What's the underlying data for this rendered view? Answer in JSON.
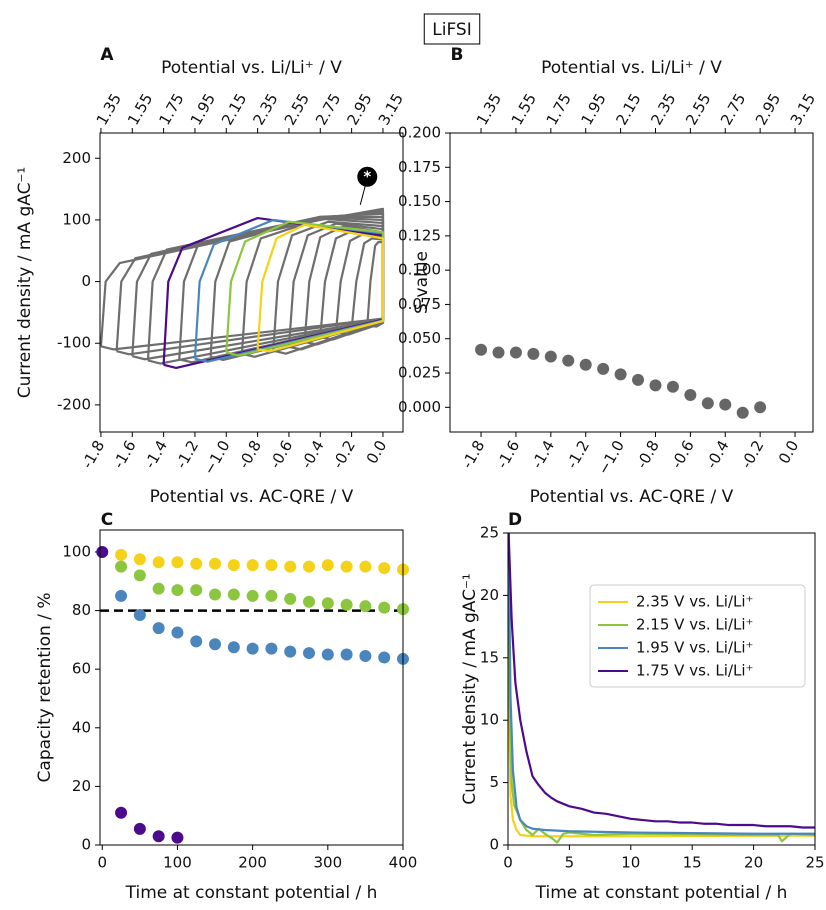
{
  "title": "LiFSI",
  "chart_data": [
    {
      "type": "line",
      "label": "A",
      "xlabel": "Potential vs. AC-QRE  / V",
      "x2label": "Potential vs. Li/Li⁺ / V",
      "ylabel": "Current density / mA gAC⁻¹",
      "xlim": [
        -1.806,
        0.128
      ],
      "x2lim": [
        1.344,
        3.278
      ],
      "ylim": [
        -244,
        241
      ],
      "xticks": [
        -1.8,
        -1.6,
        -1.4,
        -1.2,
        {
          "value": -1,
          "label": "−1.0"
        },
        -0.8,
        -0.6,
        -0.4,
        -0.2,
        {
          "value": 0,
          "label": "0.0"
        }
      ],
      "x2ticks": [
        1.35,
        1.55,
        1.75,
        1.95,
        2.15,
        2.35,
        2.55,
        2.75,
        2.95,
        3.15
      ],
      "yticks": [
        -200,
        -100,
        0,
        100,
        200
      ],
      "annotations": [
        {
          "text": "*",
          "x": -0.1,
          "y": 170
        }
      ],
      "series": [
        {
          "color": "#6e6e6e",
          "x": [
            -1.8,
            -1.77,
            -1.68,
            -0.4,
            0,
            0,
            -1.72,
            -1.8
          ],
          "values": [
            -105,
            0,
            30,
            100,
            118,
            -60,
            -110,
            -105
          ]
        },
        {
          "color": "#6e6e6e",
          "x": [
            -1.7,
            -1.67,
            -1.58,
            -0.4,
            0,
            0,
            -1.62,
            -1.7
          ],
          "values": [
            -113,
            0,
            38,
            102,
            115,
            -60,
            -118,
            -113
          ]
        },
        {
          "color": "#6e6e6e",
          "x": [
            -1.6,
            -1.57,
            -1.48,
            -0.4,
            0,
            0,
            -1.52,
            -1.6
          ],
          "values": [
            -121,
            0,
            45,
            104,
            112,
            -62,
            -126,
            -121
          ]
        },
        {
          "color": "#6e6e6e",
          "x": [
            -1.5,
            -1.47,
            -1.38,
            -0.4,
            0,
            0,
            -1.42,
            -1.5
          ],
          "values": [
            -128,
            0,
            52,
            105,
            110,
            -62,
            -133,
            -128
          ]
        },
        {
          "color": "#6e6e6e",
          "x": [
            -1.3,
            -1.27,
            -1.18,
            -0.4,
            0,
            0,
            -1.22,
            -1.3
          ],
          "values": [
            -126,
            0,
            60,
            105,
            105,
            -62,
            -131,
            -126
          ]
        },
        {
          "color": "#6e6e6e",
          "x": [
            -1.1,
            -1.07,
            -0.98,
            -0.4,
            0,
            0,
            -1.02,
            -1.1
          ],
          "values": [
            -122,
            0,
            65,
            104,
            100,
            -64,
            -127,
            -122
          ]
        },
        {
          "color": "#6e6e6e",
          "x": [
            -0.9,
            -0.87,
            -0.78,
            -0.4,
            0,
            0,
            -0.82,
            -0.9
          ],
          "values": [
            -117,
            0,
            70,
            102,
            95,
            -64,
            -122,
            -117
          ]
        },
        {
          "color": "#6e6e6e",
          "x": [
            -0.7,
            -0.67,
            -0.58,
            -0.35,
            0,
            0,
            -0.62,
            -0.7
          ],
          "values": [
            -112,
            0,
            75,
            97,
            90,
            -65,
            -117,
            -112
          ]
        },
        {
          "color": "#6e6e6e",
          "x": [
            -0.6,
            -0.57,
            -0.48,
            -0.3,
            0,
            0,
            -0.52,
            -0.6
          ],
          "values": [
            -106,
            0,
            75,
            94,
            85,
            -65,
            -110,
            -106
          ]
        },
        {
          "color": "#6e6e6e",
          "x": [
            -0.5,
            -0.47,
            -0.4,
            -0.25,
            0,
            0,
            -0.42,
            -0.5
          ],
          "values": [
            -98,
            0,
            72,
            90,
            80,
            -66,
            -102,
            -98
          ]
        },
        {
          "color": "#6e6e6e",
          "x": [
            -0.4,
            -0.37,
            -0.3,
            -0.18,
            0,
            0,
            -0.32,
            -0.4
          ],
          "values": [
            -90,
            0,
            70,
            84,
            76,
            -66,
            -94,
            -90
          ]
        },
        {
          "color": "#6e6e6e",
          "x": [
            -0.3,
            -0.27,
            -0.21,
            -0.12,
            0,
            0,
            -0.22,
            -0.3
          ],
          "values": [
            -82,
            0,
            66,
            78,
            72,
            -67,
            -86,
            -82
          ]
        },
        {
          "color": "#6e6e6e",
          "x": [
            -0.2,
            -0.17,
            -0.12,
            -0.07,
            0,
            0,
            -0.13,
            -0.2
          ],
          "values": [
            -76,
            0,
            62,
            70,
            68,
            -67,
            -78,
            -76
          ]
        },
        {
          "color": "#6e6e6e",
          "x": [
            -0.1,
            -0.08,
            -0.05,
            -0.03,
            0,
            0,
            -0.04,
            -0.1
          ],
          "values": [
            -72,
            0,
            58,
            64,
            64,
            -67,
            -73,
            -72
          ]
        },
        {
          "color": "#4b0b8b",
          "x": [
            -1.4,
            -1.37,
            -1.28,
            -0.8,
            0,
            0,
            -1.32,
            -1.4
          ],
          "values": [
            -135,
            0,
            55,
            103,
            75,
            -62,
            -140,
            -135
          ]
        },
        {
          "color": "#4a86bd",
          "x": [
            -1.2,
            -1.17,
            -1.08,
            -0.7,
            0,
            0,
            -1.12,
            -1.2
          ],
          "values": [
            -125,
            0,
            60,
            100,
            78,
            -63,
            -130,
            -125
          ]
        },
        {
          "color": "#8cc63f",
          "x": [
            -1.0,
            -0.97,
            -0.88,
            -0.6,
            0,
            0,
            -0.92,
            -1.0
          ],
          "values": [
            -115,
            0,
            65,
            97,
            80,
            -64,
            -120,
            -115
          ]
        },
        {
          "color": "#f5d21a",
          "x": [
            -0.8,
            -0.77,
            -0.68,
            -0.5,
            0,
            0,
            -0.72,
            -0.8
          ],
          "values": [
            -110,
            0,
            70,
            92,
            70,
            -64,
            -113,
            -110
          ]
        }
      ]
    },
    {
      "type": "scatter",
      "label": "B",
      "xlabel": "Potential vs. AC-QRE  / V",
      "x2label": "Potential vs. Li/Li⁺ / V",
      "ylabel": "S-value",
      "xlim": [
        -1.978,
        0.103
      ],
      "x2lim": [
        1.172,
        3.253
      ],
      "ylim": [
        -0.018,
        0.2
      ],
      "xticks": [
        -1.8,
        -1.6,
        -1.4,
        -1.2,
        {
          "value": -1,
          "label": "−1.0"
        },
        -0.8,
        -0.6,
        -0.4,
        -0.2,
        {
          "value": 0,
          "label": "0.0"
        }
      ],
      "x2ticks": [
        1.35,
        1.55,
        1.75,
        1.95,
        2.15,
        2.35,
        2.55,
        2.75,
        2.95,
        3.15
      ],
      "yticks": [
        {
          "value": 0,
          "label": "0.000"
        },
        {
          "value": 0.025,
          "label": "0.025"
        },
        {
          "value": 0.05,
          "label": "0.050"
        },
        {
          "value": 0.075,
          "label": "0.075"
        },
        {
          "value": 0.1,
          "label": "0.100"
        },
        {
          "value": 0.125,
          "label": "0.125"
        },
        {
          "value": 0.15,
          "label": "0.150"
        },
        {
          "value": 0.175,
          "label": "0.175"
        },
        {
          "value": 0.2,
          "label": "0.200"
        }
      ],
      "series": [
        {
          "color": "#666666",
          "x": [
            -1.8,
            -1.7,
            -1.6,
            -1.5,
            -1.4,
            -1.3,
            -1.2,
            -1.1,
            -1.0,
            -0.9,
            -0.8,
            -0.7,
            -0.6,
            -0.5,
            -0.4,
            -0.3,
            -0.2
          ],
          "values": [
            0.042,
            0.04,
            0.04,
            0.039,
            0.037,
            0.034,
            0.031,
            0.028,
            0.024,
            0.02,
            0.016,
            0.015,
            0.009,
            0.003,
            0.002,
            -0.004,
            0.0
          ]
        }
      ]
    },
    {
      "type": "scatter",
      "label": "C",
      "xlabel": "Time at constant potential / h",
      "ylabel": "Capacity retention / %",
      "xlim": [
        -3,
        400
      ],
      "ylim": [
        0,
        107.5
      ],
      "xticks": [
        0,
        100,
        200,
        300,
        400
      ],
      "yticks": [
        0,
        20,
        40,
        60,
        80,
        100
      ],
      "hlines": [
        {
          "y": 80,
          "style": "dashed",
          "color": "#000000"
        }
      ],
      "series": [
        {
          "color": "#f5d21a",
          "x": [
            25,
            50,
            75,
            100,
            125,
            150,
            175,
            200,
            225,
            250,
            275,
            300,
            325,
            350,
            375,
            400
          ],
          "values": [
            99,
            97.5,
            96.5,
            96.5,
            96,
            96,
            95.5,
            95.5,
            95.5,
            95,
            95,
            95.5,
            95,
            95,
            94.5,
            94
          ]
        },
        {
          "color": "#8cc63f",
          "x": [
            25,
            50,
            75,
            100,
            125,
            150,
            175,
            200,
            225,
            250,
            275,
            300,
            325,
            350,
            375,
            400
          ],
          "values": [
            95,
            92,
            87.5,
            87,
            87,
            85.5,
            85.5,
            85,
            85,
            84,
            83,
            82.5,
            82,
            81.5,
            81,
            80.5
          ]
        },
        {
          "color": "#4a86bd",
          "x": [
            25,
            50,
            75,
            100,
            125,
            150,
            175,
            200,
            225,
            250,
            275,
            300,
            325,
            350,
            375,
            400
          ],
          "values": [
            85,
            78.5,
            74,
            72.5,
            69.5,
            68.5,
            67.5,
            67,
            67,
            66,
            65.5,
            65,
            65,
            64.5,
            64,
            63.5
          ]
        },
        {
          "color": "#4b0b8b",
          "x": [
            0,
            25,
            50,
            75,
            100
          ],
          "values": [
            100,
            11,
            5.5,
            3,
            2.5
          ]
        }
      ]
    },
    {
      "type": "line",
      "label": "D",
      "xlabel": "Time at constant potential / h",
      "ylabel": "Current density / mA gAC⁻¹",
      "xlim": [
        0,
        25
      ],
      "ylim": [
        0,
        25
      ],
      "xticks": [
        0,
        5,
        10,
        15,
        20,
        25
      ],
      "yticks": [
        0,
        5,
        10,
        15,
        20,
        25
      ],
      "legend": "upper right",
      "series": [
        {
          "name": "2.35 V vs. Li/Li⁺",
          "color": "#f5d21a",
          "x": [
            0.05,
            0.1,
            0.2,
            0.4,
            0.7,
            1,
            2,
            5,
            10,
            25
          ],
          "values": [
            25,
            10,
            4,
            2,
            1.2,
            0.8,
            0.7,
            0.7,
            0.7,
            0.75
          ]
        },
        {
          "name": "2.15 V vs. Li/Li⁺",
          "color": "#8cc63f",
          "x": [
            0.05,
            0.15,
            0.3,
            0.5,
            0.8,
            1,
            1.5,
            2,
            2.5,
            3,
            3.5,
            4,
            4.5,
            5,
            7,
            10,
            15,
            20,
            22,
            22.3,
            23,
            25
          ],
          "values": [
            25,
            10,
            5,
            3.2,
            2.5,
            2,
            1.2,
            0.8,
            1.3,
            0.9,
            0.6,
            0.2,
            0.9,
            1.0,
            0.8,
            0.9,
            0.85,
            0.8,
            0.8,
            0.3,
            0.9,
            0.8
          ]
        },
        {
          "name": "1.95 V vs. Li/Li⁺",
          "color": "#4a86bd",
          "x": [
            0.05,
            0.2,
            0.4,
            0.7,
            1,
            1.5,
            2,
            3,
            5,
            10,
            15,
            20,
            25
          ],
          "values": [
            25,
            12,
            6,
            3,
            2,
            1.5,
            1.3,
            1.2,
            1.1,
            1.0,
            0.95,
            0.9,
            0.9
          ]
        },
        {
          "name": "1.75 V vs. Li/Li⁺",
          "color": "#4b0b8b",
          "x": [
            0.05,
            0.3,
            0.6,
            1,
            1.5,
            2,
            2.5,
            3,
            3.5,
            4,
            5,
            6,
            7,
            8,
            9,
            10,
            11,
            12,
            13,
            14,
            15,
            16,
            17,
            18,
            19,
            20,
            21,
            22,
            23,
            24,
            25
          ],
          "values": [
            25,
            18,
            13,
            10,
            7.5,
            5.5,
            4.8,
            4.2,
            3.8,
            3.5,
            3.1,
            2.9,
            2.6,
            2.5,
            2.3,
            2.1,
            2.0,
            1.9,
            1.9,
            1.8,
            1.8,
            1.7,
            1.7,
            1.6,
            1.6,
            1.6,
            1.5,
            1.5,
            1.5,
            1.4,
            1.4
          ]
        }
      ]
    }
  ]
}
